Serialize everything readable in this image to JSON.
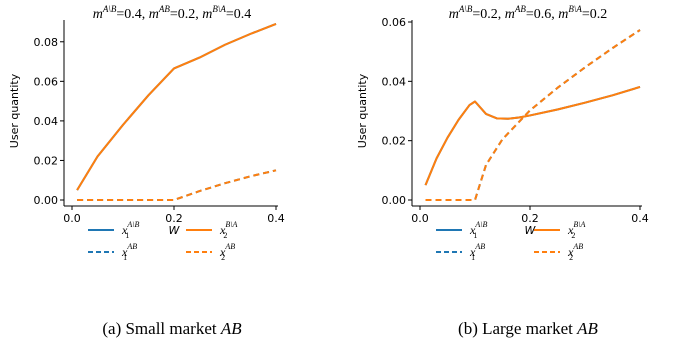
{
  "chart_data": [
    {
      "type": "line",
      "title": "m^{A\\B}=0.4, m^{AB}=0.2, m^{B\\A}=0.4",
      "title_parts": [
        {
          "base": "m",
          "sup": "A\\B",
          "val": "=0.4, "
        },
        {
          "base": "m",
          "sup": "AB",
          "val": "=0.2, "
        },
        {
          "base": "m",
          "sup": "B\\A",
          "val": "=0.4"
        }
      ],
      "xlabel": "W",
      "ylabel": "User quantity",
      "xlim": [
        0.0,
        0.4
      ],
      "ylim": [
        0.0,
        0.09
      ],
      "xticks": [
        0.0,
        0.2,
        0.4
      ],
      "xtick_labels": [
        "0.0",
        "0.2",
        "0.4"
      ],
      "yticks": [
        0.0,
        0.02,
        0.04,
        0.06,
        0.08
      ],
      "ytick_labels": [
        "0.00",
        "0.02",
        "0.04",
        "0.06",
        "0.08"
      ],
      "grid": false,
      "series": [
        {
          "name": "x_1^{A\\B}",
          "color": "#1f77b4",
          "style": "solid",
          "x": [
            0.01,
            0.05,
            0.1,
            0.15,
            0.2,
            0.25,
            0.3,
            0.35,
            0.4
          ],
          "y": [
            0.005,
            0.022,
            0.038,
            0.053,
            0.0665,
            0.072,
            0.0785,
            0.084,
            0.089
          ]
        },
        {
          "name": "x_1^{AB}",
          "color": "#1f77b4",
          "style": "dashed",
          "x": [
            0.01,
            0.1,
            0.2,
            0.25,
            0.3,
            0.35,
            0.4
          ],
          "y": [
            0.0,
            0.0,
            0.0,
            0.0045,
            0.0085,
            0.012,
            0.015
          ]
        },
        {
          "name": "x_2^{B\\A}",
          "color": "#ff7f0e",
          "style": "solid",
          "x": [
            0.01,
            0.05,
            0.1,
            0.15,
            0.2,
            0.25,
            0.3,
            0.35,
            0.4
          ],
          "y": [
            0.005,
            0.022,
            0.038,
            0.053,
            0.0665,
            0.072,
            0.0785,
            0.084,
            0.089
          ]
        },
        {
          "name": "x_2^{AB}",
          "color": "#ff7f0e",
          "style": "dashed",
          "x": [
            0.01,
            0.1,
            0.2,
            0.25,
            0.3,
            0.35,
            0.4
          ],
          "y": [
            0.0,
            0.0,
            0.0,
            0.0045,
            0.0085,
            0.012,
            0.015
          ]
        }
      ]
    },
    {
      "type": "line",
      "title": "m^{A\\B}=0.2, m^{AB}=0.6, m^{B\\A}=0.2",
      "title_parts": [
        {
          "base": "m",
          "sup": "A\\B",
          "val": "=0.2, "
        },
        {
          "base": "m",
          "sup": "AB",
          "val": "=0.6, "
        },
        {
          "base": "m",
          "sup": "B\\A",
          "val": "=0.2"
        }
      ],
      "xlabel": "W",
      "ylabel": "User quantity",
      "xlim": [
        0.0,
        0.4
      ],
      "ylim": [
        0.0,
        0.06
      ],
      "xticks": [
        0.0,
        0.2,
        0.4
      ],
      "xtick_labels": [
        "0.0",
        "0.2",
        "0.4"
      ],
      "yticks": [
        0.0,
        0.02,
        0.04,
        0.06
      ],
      "ytick_labels": [
        "0.00",
        "0.02",
        "0.04",
        "0.06"
      ],
      "grid": false,
      "series": [
        {
          "name": "x_1^{A\\B}",
          "color": "#1f77b4",
          "style": "solid",
          "x": [
            0.01,
            0.03,
            0.05,
            0.07,
            0.09,
            0.1,
            0.12,
            0.14,
            0.16,
            0.18,
            0.2,
            0.25,
            0.3,
            0.35,
            0.4
          ],
          "y": [
            0.005,
            0.014,
            0.021,
            0.027,
            0.032,
            0.0332,
            0.029,
            0.0275,
            0.0274,
            0.0278,
            0.0285,
            0.0305,
            0.0328,
            0.0353,
            0.0381
          ]
        },
        {
          "name": "x_1^{AB}",
          "color": "#1f77b4",
          "style": "dashed",
          "x": [
            0.01,
            0.05,
            0.1,
            0.12,
            0.15,
            0.2,
            0.25,
            0.3,
            0.35,
            0.4
          ],
          "y": [
            0.0,
            0.0,
            0.0,
            0.0118,
            0.0205,
            0.0302,
            0.0378,
            0.0447,
            0.0512,
            0.0573
          ]
        },
        {
          "name": "x_2^{B\\A}",
          "color": "#ff7f0e",
          "style": "solid",
          "x": [
            0.01,
            0.03,
            0.05,
            0.07,
            0.09,
            0.1,
            0.12,
            0.14,
            0.16,
            0.18,
            0.2,
            0.25,
            0.3,
            0.35,
            0.4
          ],
          "y": [
            0.005,
            0.014,
            0.021,
            0.027,
            0.032,
            0.0332,
            0.029,
            0.0275,
            0.0274,
            0.0278,
            0.0285,
            0.0305,
            0.0328,
            0.0353,
            0.0381
          ]
        },
        {
          "name": "x_2^{AB}",
          "color": "#ff7f0e",
          "style": "dashed",
          "x": [
            0.01,
            0.05,
            0.1,
            0.12,
            0.15,
            0.2,
            0.25,
            0.3,
            0.35,
            0.4
          ],
          "y": [
            0.0,
            0.0,
            0.0,
            0.0118,
            0.0205,
            0.0302,
            0.0378,
            0.0447,
            0.0512,
            0.0573
          ]
        }
      ]
    }
  ],
  "legend": [
    {
      "base": "x",
      "sub": "1",
      "sup": "A\\B",
      "color": "#1f77b4",
      "style": "solid"
    },
    {
      "base": "x",
      "sub": "2",
      "sup": "B\\A",
      "color": "#ff7f0e",
      "style": "solid"
    },
    {
      "base": "x",
      "sub": "1",
      "sup": "AB",
      "color": "#1f77b4",
      "style": "dashed"
    },
    {
      "base": "x",
      "sub": "2",
      "sup": "AB",
      "color": "#ff7f0e",
      "style": "dashed"
    }
  ],
  "captions": [
    {
      "prefix": "(a) Small market ",
      "math": "AB"
    },
    {
      "prefix": "(b) Large market ",
      "math": "AB"
    }
  ]
}
